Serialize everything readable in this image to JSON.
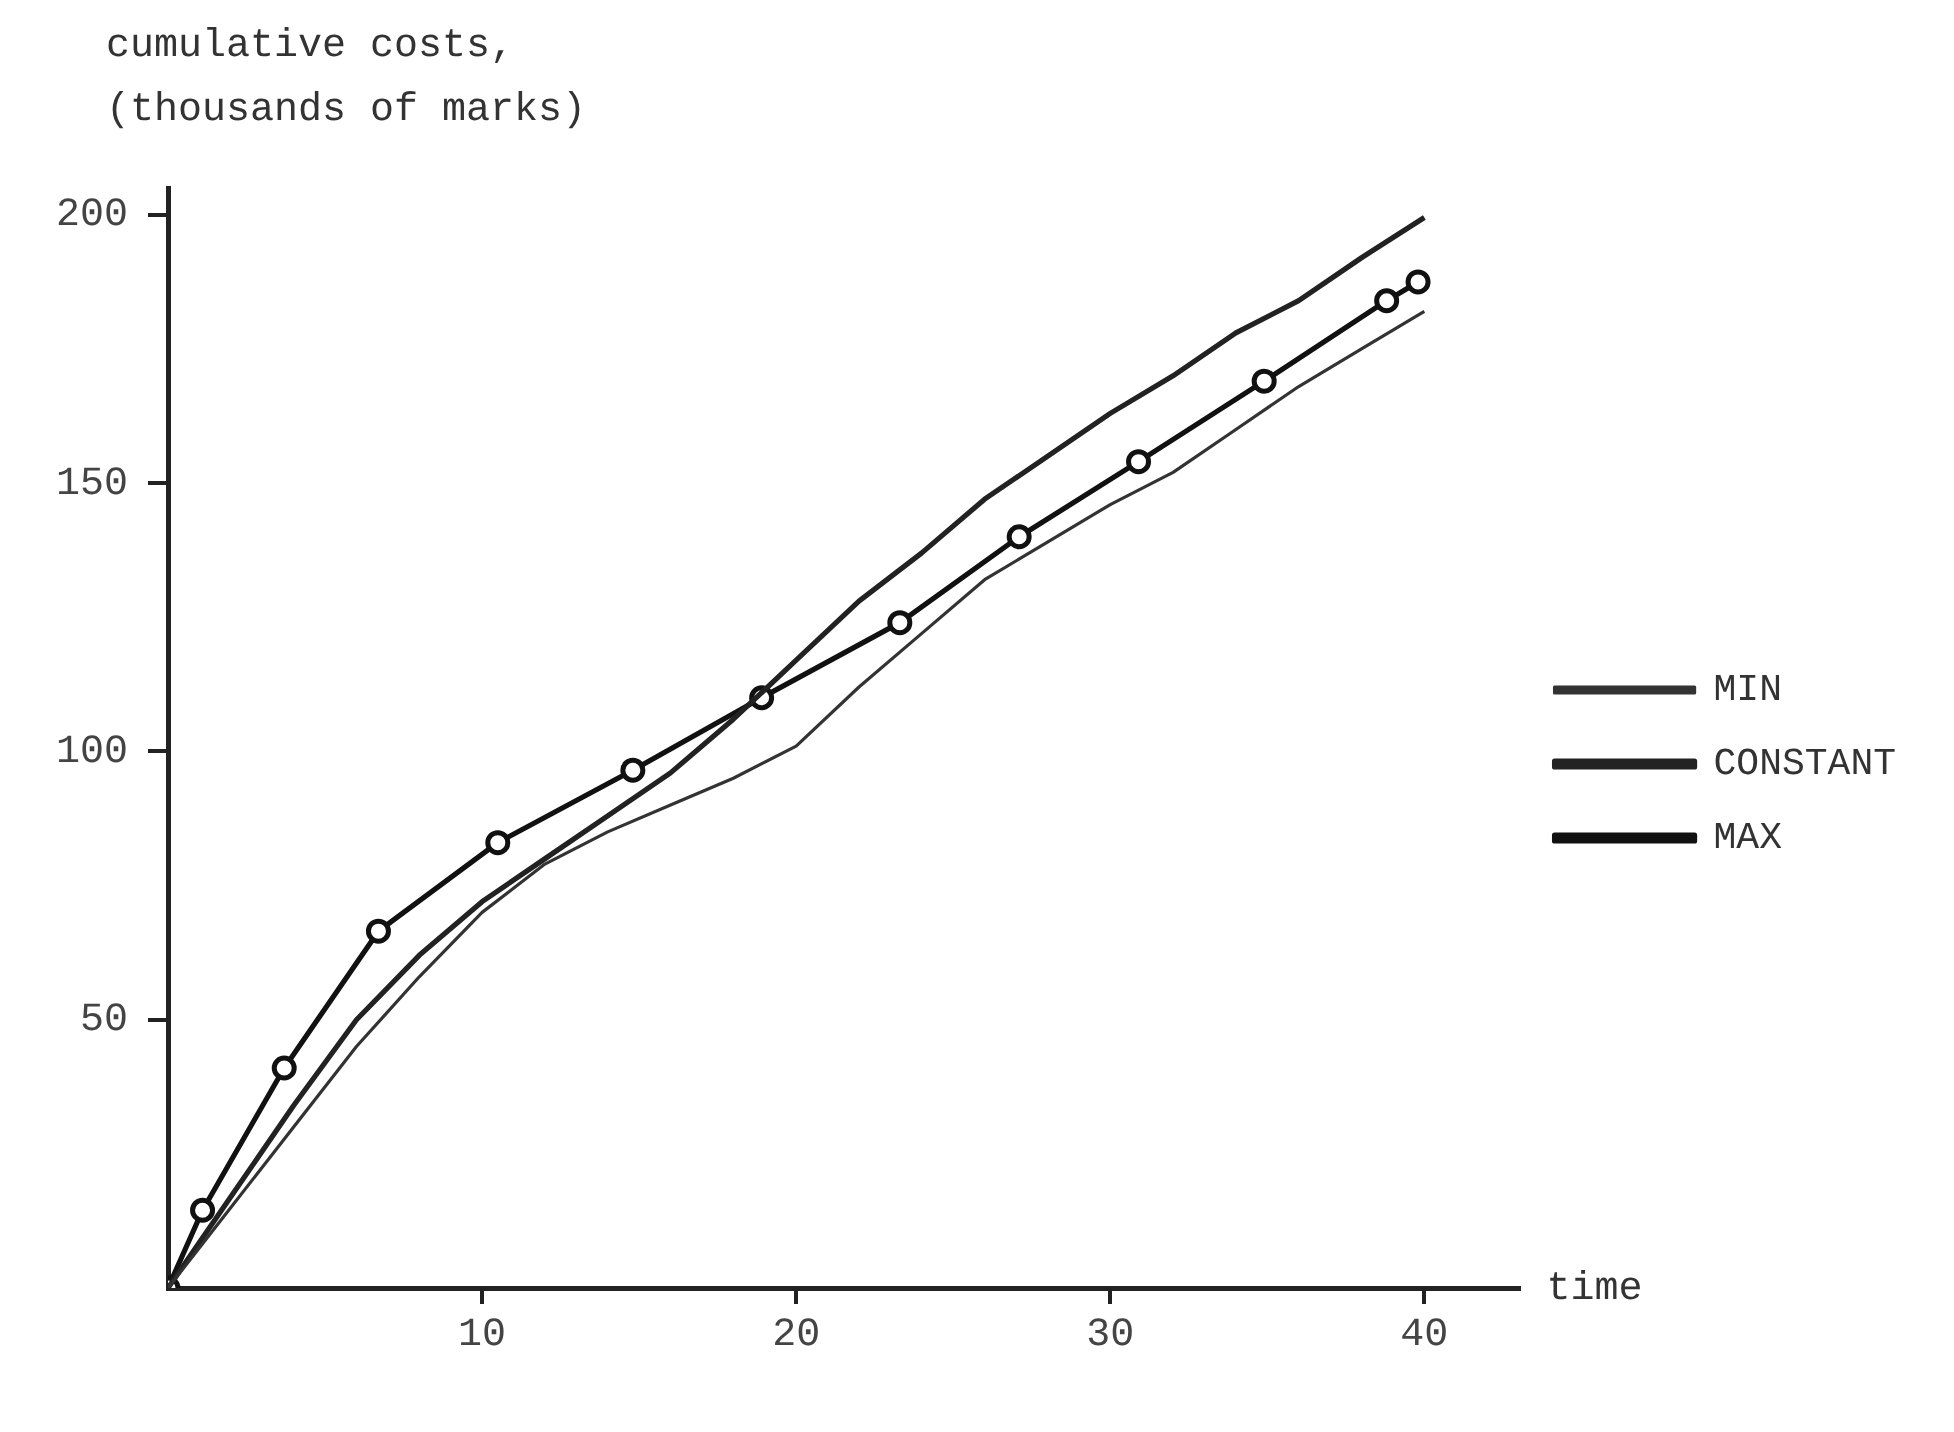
{
  "chart_data": {
    "type": "line",
    "ylabel": "cumulative costs, (thousands of marks)",
    "xlabel": "time",
    "xlim": [
      0,
      43
    ],
    "ylim": [
      0,
      205
    ],
    "xticks": [
      10,
      20,
      30,
      40
    ],
    "yticks": [
      50,
      100,
      150,
      200
    ],
    "grid": false,
    "legend": "right",
    "series": [
      {
        "name": "MIN",
        "color": "#333333",
        "line_style": "solid",
        "marker": "none",
        "x": [
          0,
          2,
          4,
          6,
          8,
          10,
          12,
          14,
          16,
          18,
          20,
          22,
          24,
          26,
          28,
          30,
          32,
          34,
          36,
          38,
          40
        ],
        "values": [
          0,
          15,
          30,
          45,
          58,
          70,
          79,
          85,
          90,
          95,
          101,
          112,
          122,
          132,
          139,
          146,
          152,
          160,
          168,
          175,
          182
        ]
      },
      {
        "name": "CONSTANT",
        "color": "#222222",
        "line_style": "solid",
        "marker": "none",
        "x": [
          0,
          2,
          4,
          6,
          8,
          10,
          12,
          14,
          16,
          18,
          20,
          22,
          24,
          26,
          28,
          30,
          32,
          34,
          36,
          38,
          40
        ],
        "values": [
          0,
          17,
          34,
          50,
          62,
          72,
          80,
          88,
          96,
          106,
          117,
          128,
          137,
          147,
          155,
          163,
          170,
          178,
          184,
          192,
          199.5
        ]
      },
      {
        "name": "MAX",
        "color": "#111111",
        "line_style": "solid",
        "marker": "circle",
        "x": [
          0,
          1.1,
          3.7,
          6.7,
          10.5,
          14.8,
          18.9,
          23.3,
          27.1,
          30.9,
          34.9,
          38.8,
          39.8
        ],
        "values": [
          0,
          14.5,
          41,
          66.5,
          83,
          96.5,
          110,
          124,
          140,
          154,
          169,
          184,
          187.5
        ]
      }
    ]
  }
}
